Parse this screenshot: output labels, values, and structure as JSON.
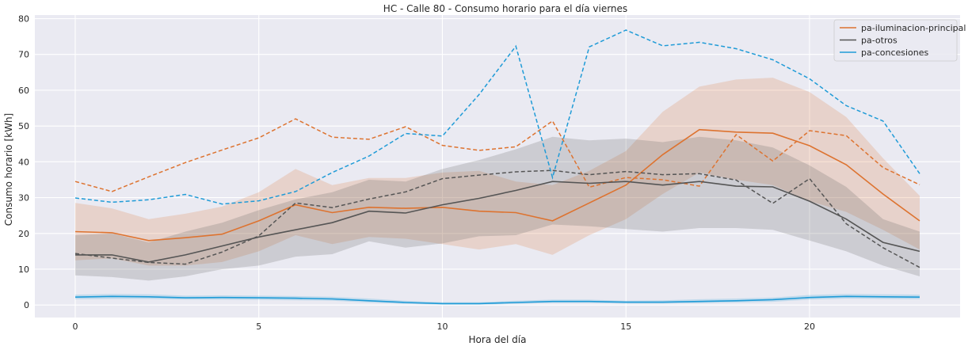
{
  "chart_data": {
    "type": "line",
    "title": "HC - Calle 80 - Consumo horario para el día viernes",
    "xlabel": "Hora del día",
    "ylabel": "Consumo horario [kWh]",
    "xlim": [
      -1.1,
      24.1
    ],
    "ylim": [
      -3.5,
      81
    ],
    "xticks": [
      0,
      5,
      10,
      15,
      20
    ],
    "yticks": [
      0,
      10,
      20,
      30,
      40,
      50,
      60,
      70,
      80
    ],
    "grid": true,
    "background": "#eaeaf2",
    "legend_position": "top-right",
    "x": [
      0,
      1,
      2,
      3,
      4,
      5,
      6,
      7,
      8,
      9,
      10,
      11,
      12,
      13,
      14,
      15,
      16,
      17,
      18,
      19,
      20,
      21,
      22,
      23
    ],
    "series": [
      {
        "name": "pa-iluminacion-principal",
        "color": "#dd7330",
        "mean": [
          20.5,
          20.2,
          18.0,
          18.8,
          19.8,
          23.5,
          28.0,
          25.8,
          27.3,
          27.0,
          27.3,
          26.2,
          25.8,
          23.5,
          28.5,
          33.5,
          42.0,
          49.0,
          48.3,
          48.0,
          44.5,
          39.2,
          31.0,
          23.5
        ],
        "lower": [
          12.5,
          13.0,
          11.0,
          11.0,
          12.0,
          15.0,
          19.5,
          17.0,
          19.0,
          18.5,
          17.0,
          15.5,
          17.0,
          14.0,
          19.5,
          24.0,
          31.0,
          37.0,
          35.0,
          33.5,
          29.0,
          26.0,
          21.0,
          15.5
        ],
        "upper": [
          28.5,
          27.0,
          24.0,
          25.5,
          27.5,
          31.5,
          38.0,
          33.5,
          35.5,
          35.5,
          37.0,
          37.5,
          34.5,
          33.5,
          37.5,
          43.0,
          54.0,
          61.0,
          63.0,
          63.5,
          59.5,
          52.5,
          41.0,
          30.5
        ],
        "dashed": [
          34.5,
          31.7,
          35.8,
          39.8,
          43.3,
          46.7,
          52.0,
          46.9,
          46.3,
          49.8,
          44.6,
          43.2,
          44.2,
          51.4,
          32.9,
          35.6,
          35.0,
          33.2,
          47.6,
          40.2,
          48.7,
          47.3,
          38.4,
          33.6
        ]
      },
      {
        "name": "pa-otros",
        "color": "#555555",
        "mean": [
          14.0,
          14.0,
          12.0,
          14.0,
          16.5,
          19.0,
          21.0,
          23.0,
          26.2,
          25.7,
          28.0,
          29.8,
          32.0,
          34.5,
          34.0,
          34.5,
          33.5,
          34.5,
          33.2,
          33.0,
          29.0,
          24.0,
          17.5,
          15.0
        ],
        "lower": [
          8.3,
          7.8,
          6.8,
          8.0,
          10.0,
          11.0,
          13.5,
          14.2,
          17.8,
          16.0,
          17.2,
          19.2,
          19.5,
          22.5,
          22.0,
          21.2,
          20.5,
          21.5,
          21.5,
          21.0,
          18.0,
          15.0,
          11.0,
          8.0
        ],
        "upper": [
          19.5,
          20.0,
          17.5,
          20.5,
          23.0,
          26.5,
          29.5,
          31.5,
          35.0,
          34.5,
          38.0,
          40.5,
          43.5,
          47.0,
          46.0,
          46.5,
          45.5,
          47.0,
          46.0,
          44.0,
          39.0,
          33.0,
          24.0,
          20.5
        ],
        "dashed": [
          14.4,
          13.1,
          11.9,
          11.4,
          14.8,
          19.3,
          28.5,
          27.2,
          29.6,
          31.6,
          35.3,
          36.3,
          37.2,
          37.6,
          36.4,
          37.3,
          36.4,
          36.7,
          34.9,
          28.4,
          35.3,
          22.7,
          16.0,
          10.5
        ]
      },
      {
        "name": "pa-concesiones",
        "color": "#1f9bd7",
        "mean": [
          2.2,
          2.4,
          2.3,
          2.0,
          2.1,
          2.0,
          1.9,
          1.7,
          1.2,
          0.7,
          0.4,
          0.4,
          0.7,
          1.0,
          1.0,
          0.8,
          0.8,
          1.0,
          1.2,
          1.5,
          2.1,
          2.4,
          2.3,
          2.2
        ],
        "lower": [
          1.6,
          1.7,
          1.7,
          1.5,
          1.5,
          1.4,
          1.3,
          1.2,
          0.7,
          0.3,
          0.1,
          0.1,
          0.3,
          0.6,
          0.6,
          0.4,
          0.4,
          0.5,
          0.7,
          0.9,
          1.5,
          1.8,
          1.7,
          1.6
        ],
        "upper": [
          2.9,
          3.1,
          3.0,
          2.6,
          2.7,
          2.6,
          2.5,
          2.3,
          1.8,
          1.2,
          0.8,
          0.8,
          1.2,
          1.5,
          1.5,
          1.2,
          1.3,
          1.6,
          1.8,
          2.1,
          2.8,
          3.1,
          3.0,
          2.9
        ],
        "dashed": [
          29.9,
          28.7,
          29.4,
          30.9,
          28.2,
          29.1,
          31.7,
          37.0,
          41.6,
          47.9,
          47.2,
          58.8,
          72.3,
          35.6,
          72.1,
          76.8,
          72.4,
          73.4,
          71.6,
          68.5,
          63.2,
          55.7,
          51.4,
          36.7
        ]
      }
    ]
  }
}
